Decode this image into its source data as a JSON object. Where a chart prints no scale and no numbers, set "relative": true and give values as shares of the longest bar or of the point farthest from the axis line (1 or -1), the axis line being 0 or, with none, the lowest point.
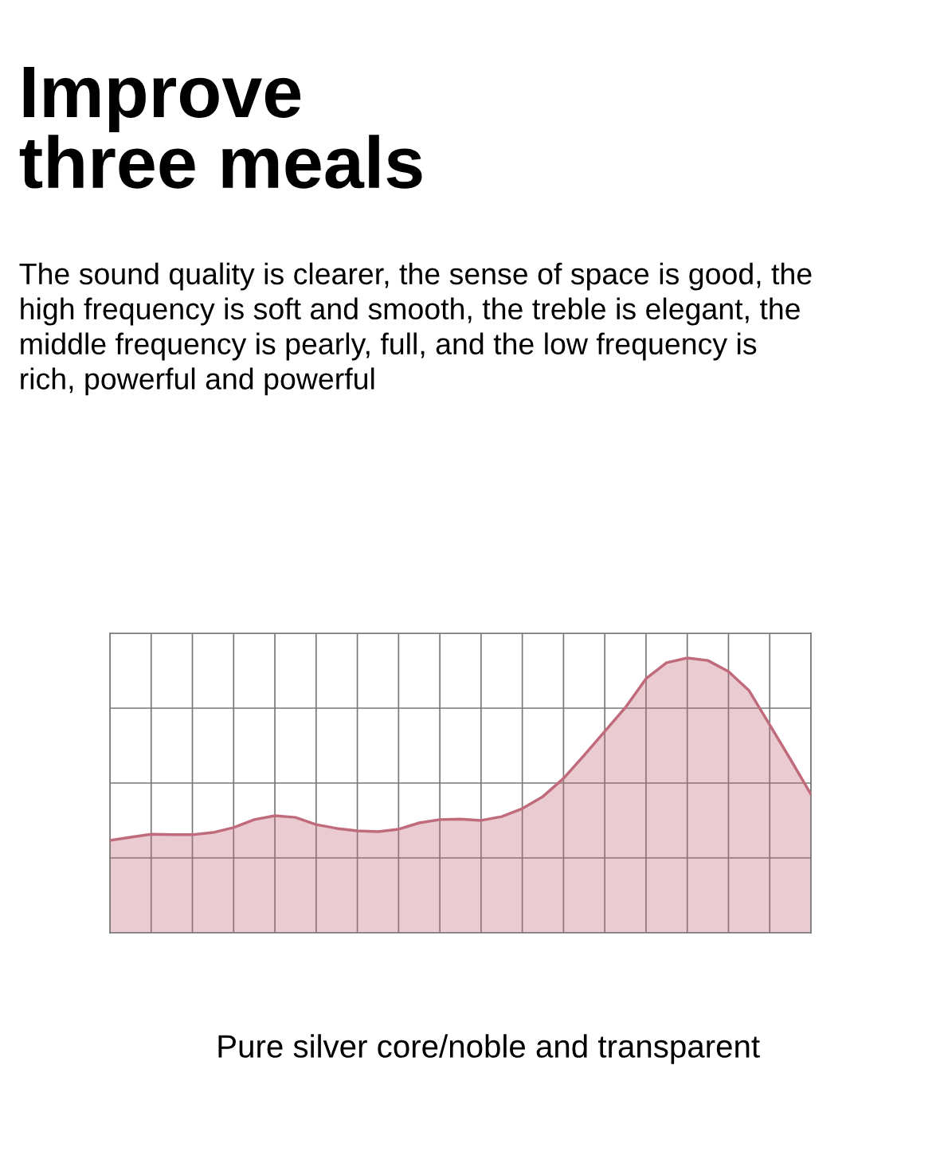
{
  "chart_data": {
    "type": "area",
    "title": "Improve\nthree meals",
    "subtitle": "The sound quality is clearer, the sense of space is good, the\nhigh frequency is soft and smooth, the treble is elegant, the\nmiddle frequency is pearly, full, and the low frequency is\nrich, powerful and powerful",
    "annotations": [
      "Pure silver core/noble and transparent"
    ],
    "relative": true,
    "grid": true,
    "tick_labels": false,
    "legend": false,
    "categories": [
      null,
      null,
      null,
      null,
      null,
      null,
      null,
      null,
      null,
      null,
      null,
      null,
      null,
      null,
      null,
      null,
      null,
      null,
      null,
      null,
      null,
      null,
      null,
      null,
      null,
      null,
      null,
      null,
      null,
      null,
      null,
      null,
      null,
      null,
      null
    ],
    "series": [
      {
        "color": "#c06b7b",
        "values": [
          0.336,
          0.348,
          0.359,
          0.357,
          0.357,
          0.365,
          0.383,
          0.412,
          0.426,
          0.42,
          0.394,
          0.38,
          0.371,
          0.368,
          0.377,
          0.4,
          0.412,
          0.414,
          0.409,
          0.423,
          0.452,
          0.496,
          0.562,
          0.646,
          0.733,
          0.82,
          0.925,
          0.983,
          1.0,
          0.991,
          0.951,
          0.881,
          0.757,
          0.632,
          0.504
        ]
      }
    ]
  }
}
